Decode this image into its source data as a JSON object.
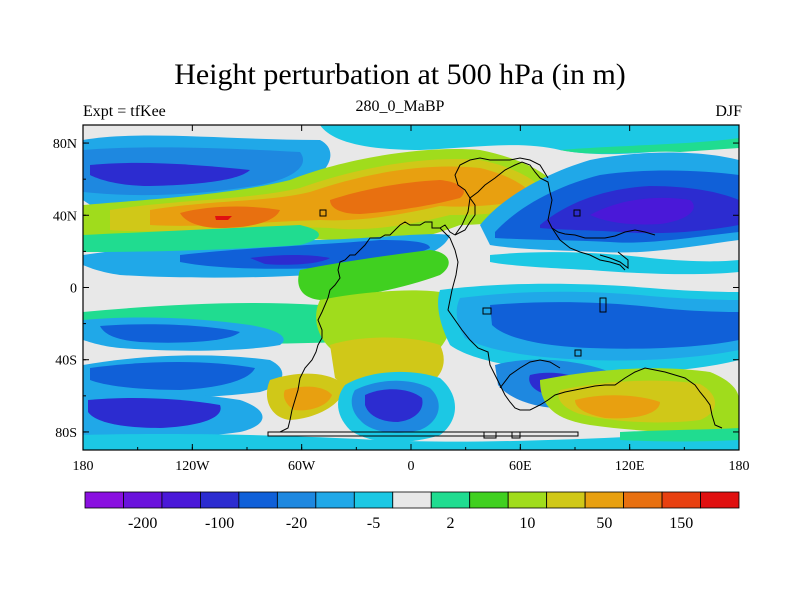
{
  "title": "Height perturbation at 500 hPa (in m)",
  "left_label": "Expt = tfKee",
  "center_label": "280_0_MaBP",
  "right_label": "DJF",
  "map": {
    "lon_range": [
      -180,
      180
    ],
    "lat_range": [
      -90,
      90
    ],
    "x_ticks": [
      "180",
      "120W",
      "60W",
      "0",
      "60E",
      "120E",
      "180"
    ],
    "y_ticks": [
      "80N",
      "40N",
      "0",
      "40S",
      "80S"
    ],
    "background_color": "#e8e8e8",
    "coastline_color": "#000000"
  },
  "colorbar": {
    "colors": [
      "#8a10e0",
      "#6a12dc",
      "#4a18d8",
      "#2c2cd0",
      "#1060d8",
      "#1e88e0",
      "#20a8e8",
      "#1cc8e4",
      "#e8e8e8",
      "#20dc90",
      "#40d020",
      "#a0dc1c",
      "#d0c818",
      "#e8a010",
      "#e87010",
      "#e84010",
      "#e01010"
    ],
    "labels": [
      "-200",
      "-100",
      "-20",
      "-5",
      "2",
      "10",
      "50",
      "150"
    ]
  }
}
